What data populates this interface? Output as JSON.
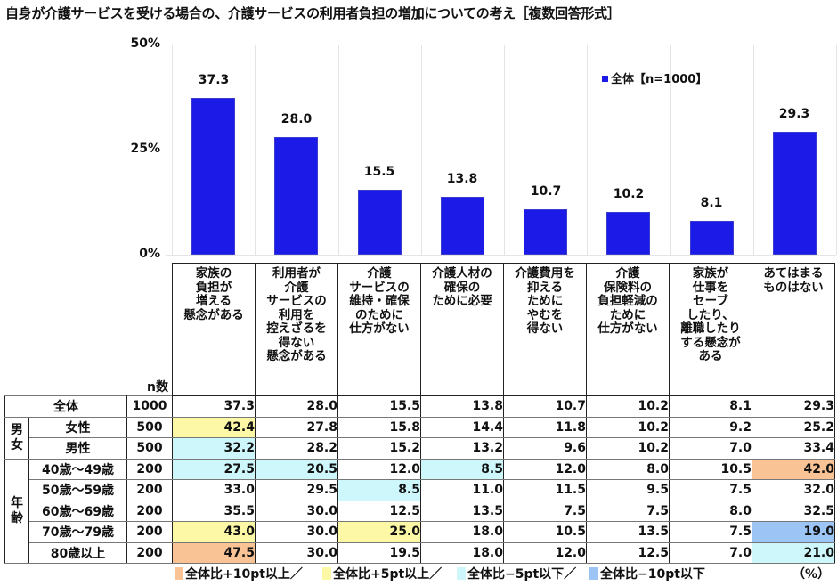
{
  "title": "自身が介護サービスを受ける場合の、介護サービスの利用者負担の増加についての考え［複数回答形式］",
  "chart_data": {
    "type": "bar",
    "title": "自身が介護サービスを受ける場合の、介護サービスの利用者負担の増加についての考え［複数回答形式］",
    "categories": [
      "家族の負担が増える懸念がある",
      "利用者が介護サービスの利用を控えざるを得ない懸念がある",
      "介護サービスの維持・確保のために仕方がない",
      "介護人材の確保のために必要",
      "介護費用を抑えるためにやむを得ない",
      "介護保険料の負担軽減のために仕方がない",
      "家族が仕事をセーブしたり、離職したりする懸念がある",
      "あてはまるものはない"
    ],
    "series": [
      {
        "name": "全体【n=1000】",
        "values": [
          37.3,
          28.0,
          15.5,
          13.8,
          10.7,
          10.2,
          8.1,
          29.3
        ],
        "color": "#1c1ae6"
      }
    ],
    "xlabel": "",
    "ylabel": "",
    "ylim": [
      0,
      50
    ],
    "yticks": [
      "0%",
      "25%",
      "50%"
    ],
    "grid": true,
    "legend_position": "top-right inside plot"
  },
  "chart": {
    "yticks": {
      "t50": "50%",
      "t25": "25%",
      "t0": "0%"
    },
    "legend": "全体【n=1000】",
    "bar_labels": [
      "37.3",
      "28.0",
      "15.5",
      "13.8",
      "10.7",
      "10.2",
      "8.1",
      "29.3"
    ]
  },
  "table": {
    "n_header": "n数",
    "columns": [
      [
        "家族の",
        "負担が",
        "増える",
        "懸念がある"
      ],
      [
        "利用者が",
        "介護",
        "サービスの",
        "利用を",
        "控えざるを",
        "得ない",
        "懸念がある"
      ],
      [
        "介護",
        "サービスの",
        "維持・確保",
        "のために",
        "仕方がない"
      ],
      [
        "介護人材の",
        "確保の",
        "ために必要"
      ],
      [
        "介護費用を",
        "抑える",
        "ために",
        "やむを",
        "得ない"
      ],
      [
        "介護",
        "保険料の",
        "負担軽減の",
        "ために",
        "仕方がない"
      ],
      [
        "家族が",
        "仕事を",
        "セーブ",
        "したり、",
        "離職したり",
        "する懸念が",
        "ある"
      ],
      [
        "あてはまる",
        "ものはない"
      ]
    ],
    "groups": {
      "gender": "男女",
      "age": "年齢"
    },
    "rows": [
      {
        "label": "全体",
        "n": "1000",
        "values": [
          "37.3",
          "28.0",
          "15.5",
          "13.8",
          "10.7",
          "10.2",
          "8.1",
          "29.3"
        ],
        "colors": [
          "",
          "",
          "",
          "",
          "",
          "",
          "",
          ""
        ]
      },
      {
        "label": "女性",
        "n": "500",
        "values": [
          "42.4",
          "27.8",
          "15.8",
          "14.4",
          "11.8",
          "10.2",
          "9.2",
          "25.2"
        ],
        "colors": [
          "c-yellow",
          "",
          "",
          "",
          "",
          "",
          "",
          ""
        ]
      },
      {
        "label": "男性",
        "n": "500",
        "values": [
          "32.2",
          "28.2",
          "15.2",
          "13.2",
          "9.6",
          "10.2",
          "7.0",
          "33.4"
        ],
        "colors": [
          "c-lightblue",
          "",
          "",
          "",
          "",
          "",
          "",
          ""
        ]
      },
      {
        "label": "40歳～49歳",
        "n": "200",
        "values": [
          "27.5",
          "20.5",
          "12.0",
          "8.5",
          "12.0",
          "8.0",
          "10.5",
          "42.0"
        ],
        "colors": [
          "c-lightblue",
          "c-lightblue",
          "",
          "c-lightblue",
          "",
          "",
          "",
          "c-orange"
        ]
      },
      {
        "label": "50歳～59歳",
        "n": "200",
        "values": [
          "33.0",
          "29.5",
          "8.5",
          "11.0",
          "11.5",
          "9.5",
          "7.5",
          "32.0"
        ],
        "colors": [
          "",
          "",
          "c-lightblue",
          "",
          "",
          "",
          "",
          ""
        ]
      },
      {
        "label": "60歳～69歳",
        "n": "200",
        "values": [
          "35.5",
          "30.0",
          "12.5",
          "13.5",
          "7.5",
          "7.5",
          "8.0",
          "32.5"
        ],
        "colors": [
          "",
          "",
          "",
          "",
          "",
          "",
          "",
          ""
        ]
      },
      {
        "label": "70歳～79歳",
        "n": "200",
        "values": [
          "43.0",
          "30.0",
          "25.0",
          "18.0",
          "10.5",
          "13.5",
          "7.5",
          "19.0"
        ],
        "colors": [
          "c-yellow",
          "",
          "c-yellow",
          "",
          "",
          "",
          "",
          "c-blue"
        ]
      },
      {
        "label": "80歳以上",
        "n": "200",
        "values": [
          "47.5",
          "30.0",
          "19.5",
          "18.0",
          "12.0",
          "12.5",
          "7.0",
          "21.0"
        ],
        "colors": [
          "c-orange",
          "",
          "",
          "",
          "",
          "",
          "",
          "c-lightblue"
        ]
      }
    ]
  },
  "footer": {
    "legend": [
      {
        "label": "全体比+10pt以上／",
        "color": "#f9c396"
      },
      {
        "label": "全体比+5pt以上／",
        "color": "#fdf8a6"
      },
      {
        "label": "全体比−5pt以下／",
        "color": "#cdf7fb"
      },
      {
        "label": "全体比−10pt以下",
        "color": "#9cc4f5"
      }
    ],
    "unit": "（%）"
  }
}
